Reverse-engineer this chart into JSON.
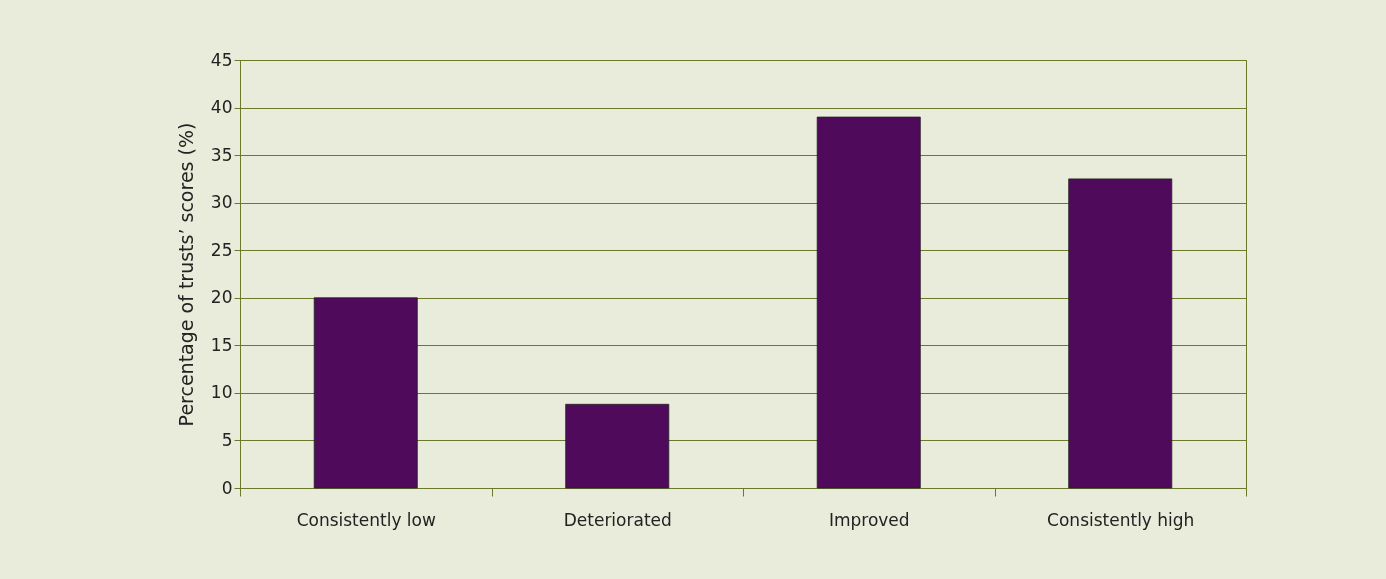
{
  "chart_data": {
    "type": "bar",
    "ylabel": "Percentage of trusts’ scores (%)",
    "categories": [
      "Consistently low",
      "Deteriorated",
      "Improved",
      "Consistently high"
    ],
    "values": [
      20,
      8.8,
      39,
      32.5
    ],
    "color": "#4f0a5c",
    "ylim": [
      0,
      45
    ],
    "yticks": [
      0,
      5,
      10,
      15,
      20,
      25,
      30,
      35,
      40,
      45
    ],
    "grid": "y"
  }
}
